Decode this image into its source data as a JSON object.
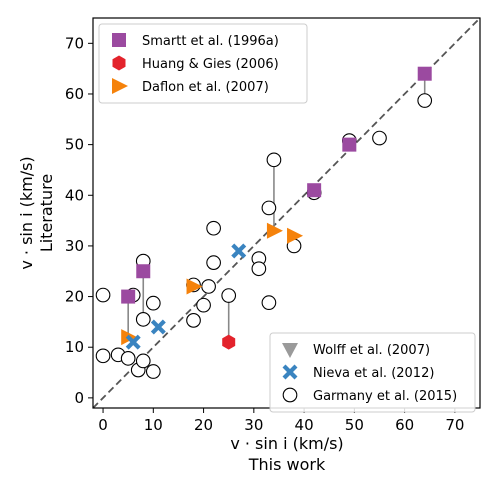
{
  "chart_data": {
    "type": "scatter",
    "xlabel": "v · sin i (km/s)",
    "xlabel2": "This work",
    "ylabel": "v · sin i (km/s)",
    "ylabel2": "Literature",
    "xlim": [
      -2,
      75
    ],
    "ylim": [
      -2,
      75
    ],
    "xticks": [
      0,
      10,
      20,
      30,
      40,
      50,
      60,
      70
    ],
    "yticks": [
      0,
      10,
      20,
      30,
      40,
      50,
      60,
      70
    ],
    "grid": false,
    "reference_line": "y = x (dashed)",
    "colors": {
      "smartt": "#9b4aa0",
      "huang": "#e3232c",
      "daflon": "#f5820b",
      "wolff": "#9a9a9a",
      "nieva": "#3a84c0",
      "garmany_edge": "#000000",
      "connector": "#888888",
      "reference": "#555555"
    },
    "legends": [
      {
        "position": "top-left",
        "entries": [
          {
            "key": "smartt",
            "marker": "square",
            "label": "Smartt et al. (1996a)"
          },
          {
            "key": "huang",
            "marker": "hexagon",
            "label": "Huang & Gies (2006)"
          },
          {
            "key": "daflon",
            "marker": "triangle-right",
            "label": "Daflon et al. (2007)"
          }
        ]
      },
      {
        "position": "bottom-right",
        "entries": [
          {
            "key": "wolff",
            "marker": "triangle-down",
            "label": "Wolff et al. (2007)"
          },
          {
            "key": "nieva",
            "marker": "x",
            "label": "Nieva et al. (2012)"
          },
          {
            "key": "garmany",
            "marker": "circle-open",
            "label": "Garmany et al. (2015)"
          }
        ]
      }
    ],
    "series": [
      {
        "key": "smartt",
        "marker": "square",
        "points": [
          [
            5,
            20
          ],
          [
            8,
            25
          ],
          [
            42,
            41
          ],
          [
            49,
            50
          ],
          [
            64,
            64
          ]
        ]
      },
      {
        "key": "huang",
        "marker": "hexagon",
        "points": [
          [
            25,
            11
          ]
        ]
      },
      {
        "key": "daflon",
        "marker": "triangle-right",
        "points": [
          [
            5,
            12
          ],
          [
            18,
            22
          ],
          [
            34,
            33
          ],
          [
            38,
            32
          ]
        ]
      },
      {
        "key": "wolff",
        "marker": "triangle-down",
        "points": []
      },
      {
        "key": "nieva",
        "marker": "x",
        "points": [
          [
            6,
            11
          ],
          [
            11,
            14
          ],
          [
            27,
            29
          ]
        ]
      },
      {
        "key": "garmany",
        "marker": "circle-open",
        "points": [
          [
            0,
            20.3
          ],
          [
            0,
            8.3
          ],
          [
            3,
            8.5
          ],
          [
            5,
            7.8
          ],
          [
            6,
            20.3
          ],
          [
            7,
            5.5
          ],
          [
            8,
            27
          ],
          [
            8,
            15.5
          ],
          [
            8,
            7.3
          ],
          [
            10,
            18.7
          ],
          [
            10,
            5.2
          ],
          [
            18,
            22.3
          ],
          [
            18,
            15.3
          ],
          [
            20,
            18.3
          ],
          [
            21,
            22
          ],
          [
            22,
            33.5
          ],
          [
            22,
            26.7
          ],
          [
            25,
            20.2
          ],
          [
            31,
            27.5
          ],
          [
            31,
            25.5
          ],
          [
            33,
            37.5
          ],
          [
            33,
            18.8
          ],
          [
            34,
            47
          ],
          [
            38,
            30
          ],
          [
            42,
            40.5
          ],
          [
            49,
            50.8
          ],
          [
            55,
            51.3
          ],
          [
            64,
            58.7
          ]
        ]
      }
    ],
    "connectors": [
      [
        [
          5,
          20
        ],
        [
          5,
          12
        ]
      ],
      [
        [
          8,
          25
        ],
        [
          8,
          27
        ]
      ],
      [
        [
          8,
          25
        ],
        [
          8,
          15.5
        ]
      ],
      [
        [
          25,
          11
        ],
        [
          25,
          20.2
        ]
      ],
      [
        [
          34,
          33
        ],
        [
          34,
          47
        ]
      ],
      [
        [
          64,
          64
        ],
        [
          64,
          58.7
        ]
      ]
    ]
  }
}
